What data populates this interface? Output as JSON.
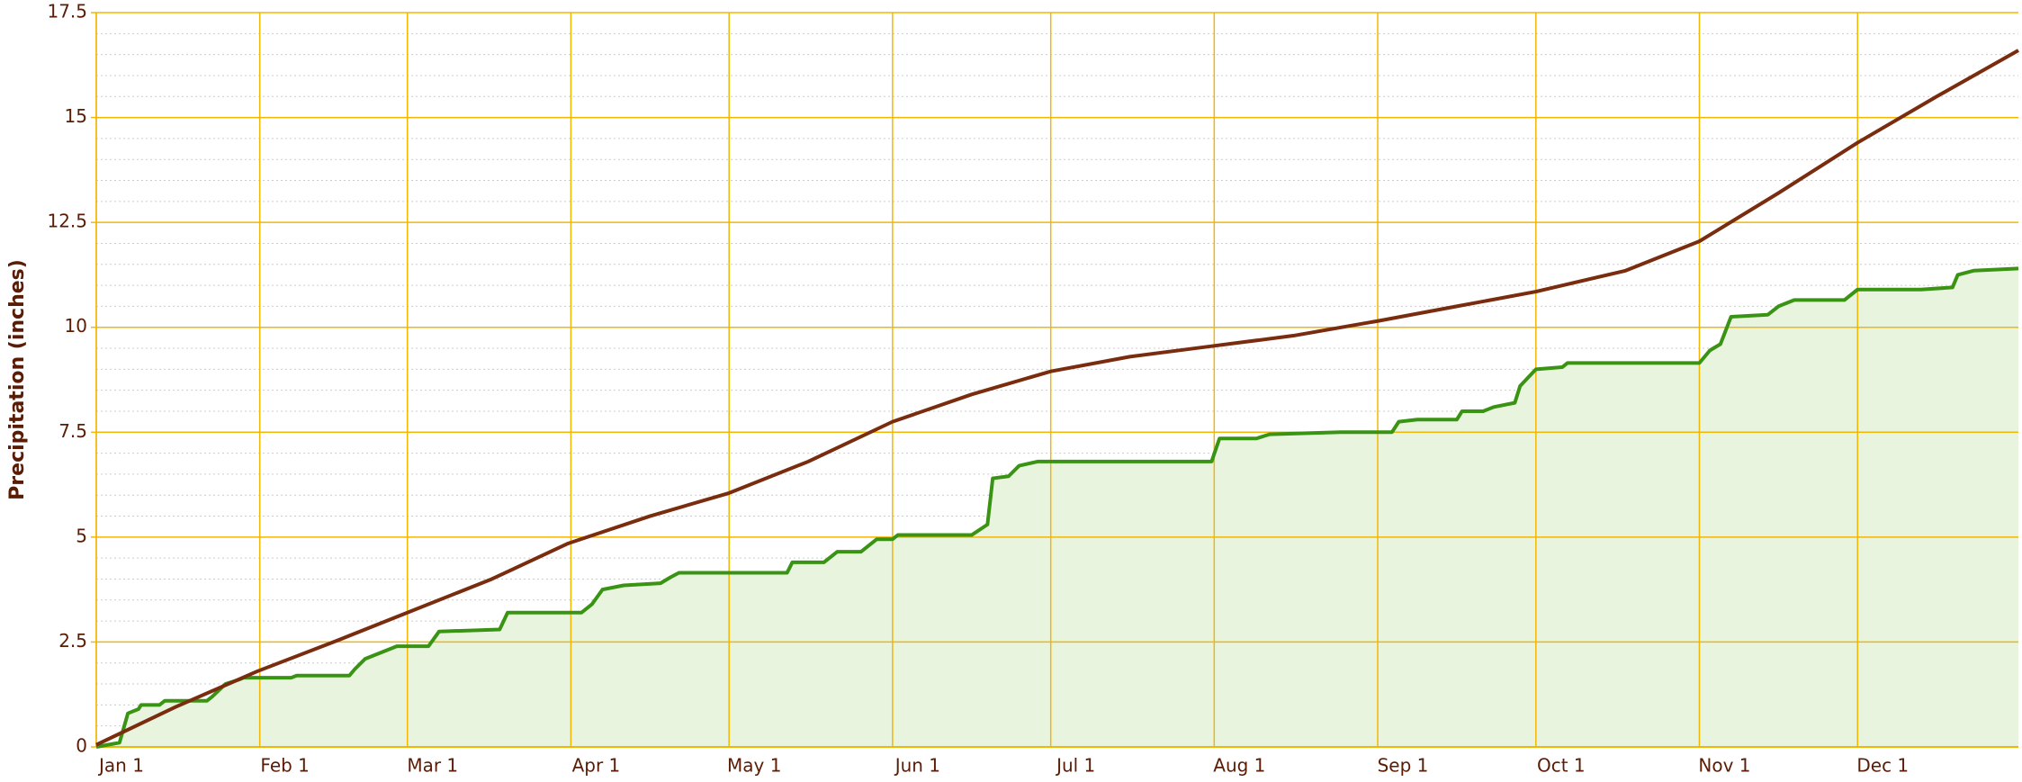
{
  "chart_data": {
    "type": "line",
    "y_label": "Precipitation (inches)",
    "xlim": [
      0,
      364.5
    ],
    "xticks": [
      {
        "value": 0,
        "label": "Jan 1"
      },
      {
        "value": 31,
        "label": "Feb 1"
      },
      {
        "value": 59,
        "label": "Mar 1"
      },
      {
        "value": 90,
        "label": "Apr 1"
      },
      {
        "value": 120,
        "label": "May 1"
      },
      {
        "value": 151,
        "label": "Jun 1"
      },
      {
        "value": 181,
        "label": "Jul 1"
      },
      {
        "value": 212,
        "label": "Aug 1"
      },
      {
        "value": 243,
        "label": "Sep 1"
      },
      {
        "value": 273,
        "label": "Oct 1"
      },
      {
        "value": 304,
        "label": "Nov 1"
      },
      {
        "value": 334,
        "label": "Dec 1"
      }
    ],
    "ylim": [
      0,
      17.5
    ],
    "yticks": [
      0,
      2.5,
      5,
      7.5,
      10,
      12.5,
      15,
      17.5
    ],
    "grid": true,
    "grid_color": "#f2b705",
    "series": [
      {
        "color": "#3a9414",
        "fill": "#e9f4df",
        "x": [
          0,
          4.4,
          6,
          8,
          8.5,
          12,
          13,
          21,
          22,
          24.5,
          27,
          28,
          37,
          38,
          48,
          49,
          51,
          54,
          57,
          63,
          65,
          76.5,
          78,
          92,
          94,
          96,
          100,
          107,
          109,
          110.5,
          131,
          132,
          138,
          140.5,
          145,
          148,
          151,
          152,
          166,
          169,
          170,
          173,
          175,
          178.5,
          211.5,
          213,
          220,
          222.5,
          236,
          245.7,
          247,
          250.5,
          258,
          259,
          263,
          265,
          269,
          270,
          273,
          278,
          279,
          304,
          306,
          308,
          310,
          317,
          319,
          322,
          331.5,
          334,
          346,
          352,
          353,
          356,
          364.5
        ],
        "values": [
          0,
          0.1,
          0.8,
          0.9,
          1.0,
          1.0,
          1.1,
          1.1,
          1.2,
          1.5,
          1.6,
          1.65,
          1.65,
          1.7,
          1.7,
          1.85,
          2.1,
          2.25,
          2.4,
          2.4,
          2.75,
          2.8,
          3.2,
          3.2,
          3.4,
          3.75,
          3.85,
          3.9,
          4.05,
          4.15,
          4.15,
          4.4,
          4.4,
          4.65,
          4.65,
          4.95,
          4.95,
          5.05,
          5.05,
          5.3,
          6.4,
          6.45,
          6.7,
          6.8,
          6.8,
          7.35,
          7.35,
          7.45,
          7.5,
          7.5,
          7.75,
          7.8,
          7.8,
          8.0,
          8.0,
          8.1,
          8.2,
          8.6,
          9.0,
          9.05,
          9.15,
          9.15,
          9.45,
          9.6,
          10.25,
          10.3,
          10.5,
          10.65,
          10.65,
          10.9,
          10.9,
          10.95,
          11.25,
          11.35,
          11.4
        ]
      },
      {
        "color": "#7a2c0e",
        "x": [
          0,
          15,
          30.5,
          45,
          59,
          75,
          89.5,
          105,
          120,
          135,
          151,
          166,
          181,
          196,
          211.5,
          227,
          243,
          258,
          273,
          290,
          304,
          319,
          334,
          349,
          364.5
        ],
        "values": [
          0.05,
          0.95,
          1.8,
          2.5,
          3.2,
          4.0,
          4.85,
          5.5,
          6.05,
          6.8,
          7.75,
          8.4,
          8.95,
          9.3,
          9.55,
          9.8,
          10.15,
          10.5,
          10.85,
          11.35,
          12.05,
          13.2,
          14.4,
          15.5,
          16.6
        ]
      }
    ]
  }
}
